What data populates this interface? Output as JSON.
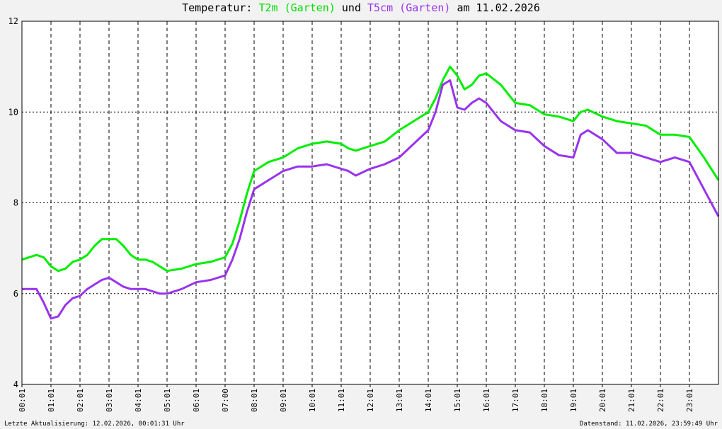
{
  "title": {
    "prefix": "Temperatur: ",
    "series1": "T2m (Garten)",
    "middle": " und ",
    "series2": "T5cm (Garten)",
    "suffix": " am 11.02.2026"
  },
  "footer": {
    "left": "Letzte Aktualisierung: 12.02.2026, 00:01:31 Uhr",
    "right": "Datenstand: 11.02.2026, 23:59:49 Uhr"
  },
  "chart_data": {
    "type": "line",
    "title": "Temperatur: T2m (Garten) und T5cm (Garten) am 11.02.2026",
    "xlabel": "",
    "ylabel": "",
    "xlim": [
      0,
      24
    ],
    "ylim": [
      4,
      12
    ],
    "yticks": [
      4,
      6,
      8,
      10,
      12
    ],
    "xtick_labels": [
      "00:01",
      "01:01",
      "02:01",
      "03:01",
      "04:01",
      "05:01",
      "06:01",
      "07:00",
      "08:01",
      "09:01",
      "10:01",
      "11:01",
      "12:01",
      "13:01",
      "14:01",
      "15:01",
      "16:01",
      "17:01",
      "18:01",
      "19:01",
      "20:01",
      "21:01",
      "22:01",
      "23:01"
    ],
    "grid": true,
    "series": [
      {
        "name": "T2m (Garten)",
        "color": "#00ee00",
        "x": [
          0.0,
          0.5,
          0.75,
          1.0,
          1.25,
          1.5,
          1.75,
          2.0,
          2.25,
          2.5,
          2.75,
          3.0,
          3.25,
          3.5,
          3.75,
          4.0,
          4.25,
          4.5,
          4.75,
          5.0,
          5.5,
          6.0,
          6.5,
          7.0,
          7.25,
          7.5,
          7.75,
          8.0,
          8.5,
          9.0,
          9.5,
          10.0,
          10.5,
          11.0,
          11.25,
          11.5,
          12.0,
          12.5,
          13.0,
          13.5,
          14.0,
          14.25,
          14.5,
          14.75,
          15.0,
          15.25,
          15.5,
          15.75,
          16.0,
          16.5,
          17.0,
          17.5,
          18.0,
          18.5,
          19.0,
          19.25,
          19.5,
          20.0,
          20.5,
          21.0,
          21.5,
          22.0,
          22.5,
          23.0,
          23.5,
          24.0
        ],
        "values": [
          6.75,
          6.85,
          6.8,
          6.6,
          6.5,
          6.55,
          6.7,
          6.75,
          6.85,
          7.05,
          7.2,
          7.2,
          7.2,
          7.05,
          6.85,
          6.75,
          6.75,
          6.7,
          6.6,
          6.5,
          6.55,
          6.65,
          6.7,
          6.8,
          7.1,
          7.6,
          8.2,
          8.7,
          8.9,
          9.0,
          9.2,
          9.3,
          9.35,
          9.3,
          9.2,
          9.15,
          9.25,
          9.35,
          9.6,
          9.8,
          10.0,
          10.3,
          10.7,
          11.0,
          10.8,
          10.5,
          10.6,
          10.8,
          10.85,
          10.6,
          10.2,
          10.15,
          9.95,
          9.9,
          9.8,
          10.0,
          10.05,
          9.9,
          9.8,
          9.75,
          9.7,
          9.5,
          9.5,
          9.45,
          9.0,
          8.5
        ]
      },
      {
        "name": "T5cm (Garten)",
        "color": "#9933ee",
        "x": [
          0.0,
          0.5,
          0.75,
          1.0,
          1.25,
          1.5,
          1.75,
          2.0,
          2.25,
          2.5,
          2.75,
          3.0,
          3.25,
          3.5,
          3.75,
          4.0,
          4.25,
          4.5,
          4.75,
          5.0,
          5.5,
          6.0,
          6.5,
          7.0,
          7.25,
          7.5,
          7.75,
          8.0,
          8.5,
          9.0,
          9.5,
          10.0,
          10.5,
          11.0,
          11.25,
          11.5,
          12.0,
          12.5,
          13.0,
          13.5,
          14.0,
          14.25,
          14.5,
          14.75,
          15.0,
          15.25,
          15.5,
          15.75,
          16.0,
          16.5,
          17.0,
          17.5,
          18.0,
          18.5,
          19.0,
          19.25,
          19.5,
          20.0,
          20.5,
          21.0,
          21.5,
          22.0,
          22.5,
          23.0,
          23.5,
          24.0
        ],
        "values": [
          6.1,
          6.1,
          5.8,
          5.45,
          5.5,
          5.75,
          5.9,
          5.95,
          6.1,
          6.2,
          6.3,
          6.35,
          6.25,
          6.15,
          6.1,
          6.1,
          6.1,
          6.05,
          6.0,
          6.0,
          6.1,
          6.25,
          6.3,
          6.4,
          6.75,
          7.2,
          7.8,
          8.3,
          8.5,
          8.7,
          8.8,
          8.8,
          8.85,
          8.75,
          8.7,
          8.6,
          8.75,
          8.85,
          9.0,
          9.3,
          9.6,
          10.0,
          10.6,
          10.7,
          10.1,
          10.05,
          10.2,
          10.3,
          10.2,
          9.8,
          9.6,
          9.55,
          9.25,
          9.05,
          9.0,
          9.5,
          9.6,
          9.4,
          9.1,
          9.1,
          9.0,
          8.9,
          9.0,
          8.9,
          8.3,
          7.7
        ]
      }
    ]
  }
}
